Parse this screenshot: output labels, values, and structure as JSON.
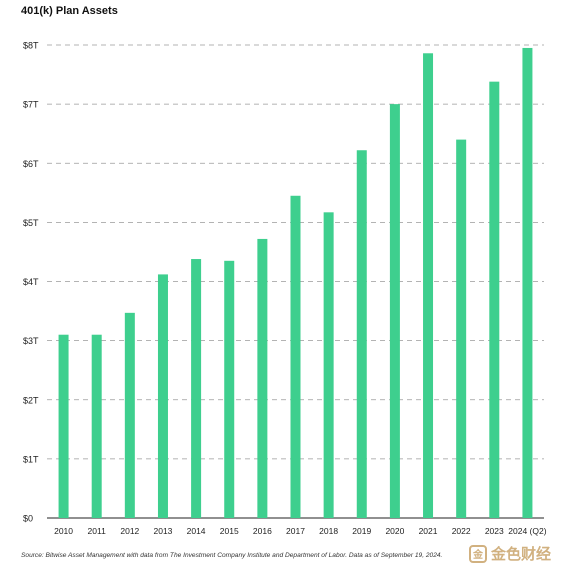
{
  "chart_data": {
    "type": "bar",
    "title": "401(k) Plan Assets",
    "xlabel": "",
    "ylabel": "",
    "ylim": [
      0,
      8
    ],
    "grid": true,
    "y_tick_values": [
      0,
      1,
      2,
      3,
      4,
      5,
      6,
      7,
      8
    ],
    "y_tick_labels": [
      "$0",
      "$1T",
      "$2T",
      "$3T",
      "$4T",
      "$5T",
      "$6T",
      "$7T",
      "$8T"
    ],
    "categories": [
      "2010",
      "2011",
      "2012",
      "2013",
      "2014",
      "2015",
      "2016",
      "2017",
      "2018",
      "2019",
      "2020",
      "2021",
      "2022",
      "2023",
      "2024 (Q2)"
    ],
    "values": [
      3.1,
      3.1,
      3.47,
      4.12,
      4.38,
      4.35,
      4.72,
      5.45,
      5.17,
      6.22,
      7.0,
      7.86,
      6.4,
      7.38,
      7.95
    ],
    "bar_color": "#3ecf8e",
    "source": "Source: Bitwise Asset Management with data from The Investment Company Institute and Department of Labor. Data as of September 19, 2024."
  },
  "watermark": {
    "text": "金色财经",
    "icon": "coin-logo-icon"
  }
}
